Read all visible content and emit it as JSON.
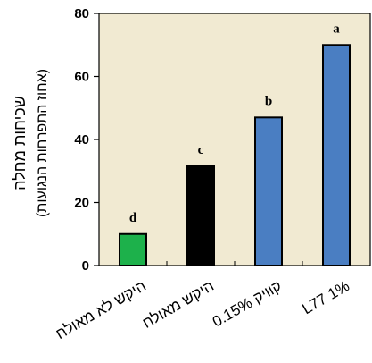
{
  "chart_data": {
    "type": "bar",
    "title": "",
    "ylabel_main": "שכיחות  מחלה",
    "ylabel_sub": "(אחוז התפרחות הנגועות)",
    "xlabel": "",
    "ylim": [
      0,
      80
    ],
    "yticks": [
      0,
      20,
      40,
      60,
      80
    ],
    "grid": false,
    "plot_background": "#f1ead2",
    "bar_border_color": "#000000",
    "categories": [
      "היקש לא מאולח",
      "היקש מאולח",
      "קוויק 0.15%",
      "L77 1%"
    ],
    "values": [
      10,
      31.5,
      47,
      70
    ],
    "bar_colors": [
      "#1db14b",
      "#000000",
      "#4a7ec2",
      "#4a7ec2"
    ],
    "data_labels": [
      "d",
      "c",
      "b",
      "a"
    ]
  }
}
